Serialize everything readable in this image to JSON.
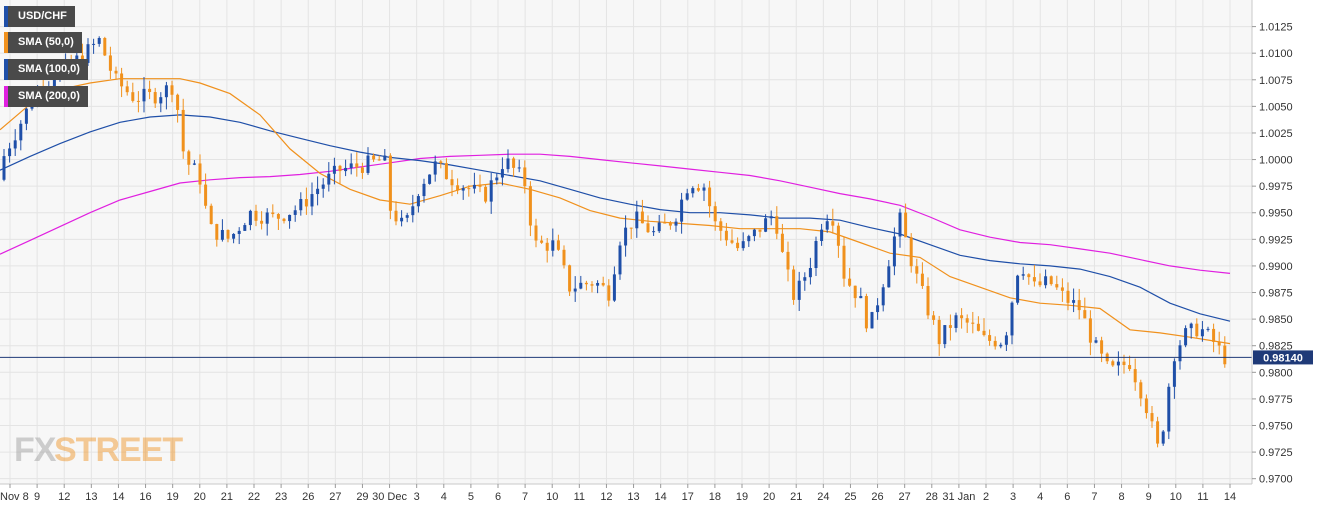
{
  "chart_data": {
    "type": "candlestick",
    "symbol": "USD/CHF",
    "legend": [
      {
        "label": "USD/CHF",
        "color": "#1f4fa8"
      },
      {
        "label": "SMA (50,0)",
        "color": "#f0911d"
      },
      {
        "label": "SMA (100,0)",
        "color": "#1f4fa8"
      },
      {
        "label": "SMA (200,0)",
        "color": "#e020e0"
      }
    ],
    "ylim": [
      0.9695,
      1.015
    ],
    "y_ticks": [
      "0.9700",
      "0.9725",
      "0.9750",
      "0.9775",
      "0.9800",
      "0.9825",
      "0.9850",
      "0.9875",
      "0.9900",
      "0.9925",
      "0.9950",
      "0.9975",
      "1.0000",
      "1.0025",
      "1.0050",
      "1.0075",
      "1.0100",
      "1.0125"
    ],
    "x_ticks": [
      "Nov 8",
      "9",
      "12",
      "13",
      "14",
      "16",
      "19",
      "20",
      "21",
      "22",
      "23",
      "26",
      "27",
      "29",
      "30 Dec",
      "3",
      "4",
      "5",
      "6",
      "7",
      "10",
      "11",
      "12",
      "13",
      "14",
      "17",
      "18",
      "19",
      "20",
      "21",
      "24",
      "25",
      "26",
      "27",
      "28",
      "31 Jan",
      "2",
      "3",
      "4",
      "6",
      "7",
      "8",
      "9",
      "10",
      "11",
      "14"
    ],
    "current_price": "0.98140",
    "current_value": 0.9814,
    "colors": {
      "up": "#1f4fa8",
      "down": "#f0911d",
      "sma50": "#f0911d",
      "sma100": "#1f4fa8",
      "sma200": "#e020e0",
      "grid": "#e4e4e4",
      "price_line": "#1f3a78"
    },
    "sma50": [
      [
        0,
        1.0028
      ],
      [
        30,
        1.0052
      ],
      [
        60,
        1.0066
      ],
      [
        90,
        1.0072
      ],
      [
        120,
        1.0076
      ],
      [
        150,
        1.0076
      ],
      [
        180,
        1.0076
      ],
      [
        200,
        1.0072
      ],
      [
        230,
        1.0062
      ],
      [
        260,
        1.0042
      ],
      [
        290,
        1.001
      ],
      [
        320,
        0.9987
      ],
      [
        350,
        0.9972
      ],
      [
        380,
        0.9962
      ],
      [
        410,
        0.9958
      ],
      [
        440,
        0.9966
      ],
      [
        470,
        0.9975
      ],
      [
        500,
        0.9978
      ],
      [
        530,
        0.9972
      ],
      [
        560,
        0.9964
      ],
      [
        590,
        0.9952
      ],
      [
        620,
        0.9945
      ],
      [
        650,
        0.9942
      ],
      [
        680,
        0.994
      ],
      [
        710,
        0.9938
      ],
      [
        740,
        0.9935
      ],
      [
        770,
        0.9935
      ],
      [
        800,
        0.9935
      ],
      [
        830,
        0.9932
      ],
      [
        860,
        0.9922
      ],
      [
        890,
        0.9912
      ],
      [
        920,
        0.9908
      ],
      [
        950,
        0.989
      ],
      [
        980,
        0.988
      ],
      [
        1010,
        0.987
      ],
      [
        1040,
        0.9865
      ],
      [
        1070,
        0.9863
      ],
      [
        1100,
        0.986
      ],
      [
        1130,
        0.984
      ],
      [
        1160,
        0.9837
      ],
      [
        1190,
        0.9833
      ],
      [
        1210,
        0.983
      ],
      [
        1230,
        0.9827
      ]
    ],
    "sma100": [
      [
        0,
        0.999
      ],
      [
        30,
        1.0003
      ],
      [
        60,
        1.0015
      ],
      [
        90,
        1.0026
      ],
      [
        120,
        1.0035
      ],
      [
        150,
        1.004
      ],
      [
        180,
        1.0042
      ],
      [
        210,
        1.004
      ],
      [
        240,
        1.0035
      ],
      [
        270,
        1.0027
      ],
      [
        300,
        1.002
      ],
      [
        330,
        1.0013
      ],
      [
        360,
        1.0007
      ],
      [
        390,
        1.0002
      ],
      [
        420,
        0.9999
      ],
      [
        450,
        0.9995
      ],
      [
        480,
        0.999
      ],
      [
        510,
        0.9985
      ],
      [
        540,
        0.998
      ],
      [
        570,
        0.9972
      ],
      [
        600,
        0.9964
      ],
      [
        630,
        0.9958
      ],
      [
        660,
        0.9953
      ],
      [
        690,
        0.995
      ],
      [
        720,
        0.995
      ],
      [
        750,
        0.9948
      ],
      [
        780,
        0.9945
      ],
      [
        810,
        0.9945
      ],
      [
        840,
        0.9943
      ],
      [
        870,
        0.9936
      ],
      [
        900,
        0.993
      ],
      [
        930,
        0.992
      ],
      [
        960,
        0.991
      ],
      [
        990,
        0.9905
      ],
      [
        1020,
        0.9902
      ],
      [
        1050,
        0.99
      ],
      [
        1080,
        0.9897
      ],
      [
        1110,
        0.989
      ],
      [
        1140,
        0.988
      ],
      [
        1170,
        0.9865
      ],
      [
        1200,
        0.9855
      ],
      [
        1230,
        0.9848
      ]
    ],
    "sma200": [
      [
        0,
        0.9911
      ],
      [
        30,
        0.9924
      ],
      [
        60,
        0.9937
      ],
      [
        90,
        0.995
      ],
      [
        120,
        0.9962
      ],
      [
        150,
        0.997
      ],
      [
        180,
        0.9978
      ],
      [
        210,
        0.9981
      ],
      [
        240,
        0.9983
      ],
      [
        270,
        0.9984
      ],
      [
        300,
        0.9986
      ],
      [
        330,
        0.9989
      ],
      [
        360,
        0.9993
      ],
      [
        390,
        0.9997
      ],
      [
        420,
        1.0001
      ],
      [
        450,
        1.0003
      ],
      [
        480,
        1.0004
      ],
      [
        510,
        1.0005
      ],
      [
        540,
        1.0005
      ],
      [
        570,
        1.0003
      ],
      [
        600,
        1.0
      ],
      [
        630,
        0.9997
      ],
      [
        660,
        0.9994
      ],
      [
        690,
        0.9991
      ],
      [
        720,
        0.9988
      ],
      [
        750,
        0.9985
      ],
      [
        780,
        0.998
      ],
      [
        810,
        0.9974
      ],
      [
        840,
        0.9968
      ],
      [
        870,
        0.9963
      ],
      [
        900,
        0.9957
      ],
      [
        930,
        0.9946
      ],
      [
        960,
        0.9934
      ],
      [
        990,
        0.9927
      ],
      [
        1020,
        0.9922
      ],
      [
        1050,
        0.992
      ],
      [
        1080,
        0.9916
      ],
      [
        1110,
        0.9912
      ],
      [
        1140,
        0.9906
      ],
      [
        1170,
        0.99
      ],
      [
        1200,
        0.9896
      ],
      [
        1230,
        0.9893
      ]
    ]
  },
  "logo": {
    "fx": "FX",
    "street": "STREET"
  }
}
